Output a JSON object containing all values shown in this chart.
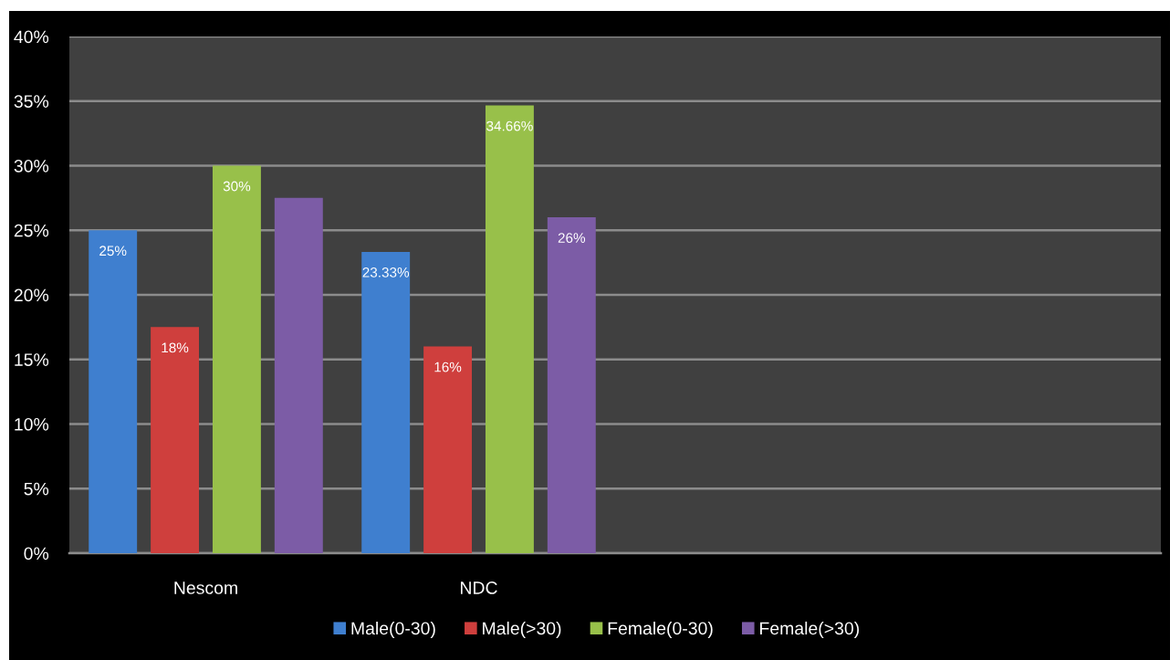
{
  "chart_data": {
    "type": "bar",
    "categories": [
      "Nescom",
      "NDC",
      null,
      null
    ],
    "series": [
      {
        "name": "Male(0-30)",
        "color": "#3f7fcf",
        "values": [
          25,
          23.33,
          null,
          null
        ],
        "value_labels": [
          "25%",
          "23.33%",
          null,
          null
        ]
      },
      {
        "name": "Male(>30)",
        "color": "#cf3f3d",
        "values": [
          17.5,
          16,
          null,
          null
        ],
        "value_labels": [
          "18%",
          "16%",
          null,
          null
        ]
      },
      {
        "name": "Female(0-30)",
        "color": "#98c04a",
        "values": [
          30,
          34.66,
          null,
          null
        ],
        "value_labels": [
          "30%",
          "34.66%",
          null,
          null
        ]
      },
      {
        "name": "Female(>30)",
        "color": "#7c5ca6",
        "values": [
          27.5,
          26,
          null,
          null
        ],
        "value_labels": [
          null,
          "26%",
          null,
          null
        ]
      }
    ],
    "ylim": [
      0,
      40
    ],
    "yticks": [
      {
        "value": 0,
        "label": "0%"
      },
      {
        "value": 5,
        "label": "5%"
      },
      {
        "value": 10,
        "label": "10%"
      },
      {
        "value": 15,
        "label": "15%"
      },
      {
        "value": 20,
        "label": "20%"
      },
      {
        "value": 25,
        "label": "25%"
      },
      {
        "value": 30,
        "label": "30%"
      },
      {
        "value": 35,
        "label": "35%"
      },
      {
        "value": 40,
        "label": "40%"
      }
    ],
    "grid": "y",
    "legend": "bottom"
  }
}
